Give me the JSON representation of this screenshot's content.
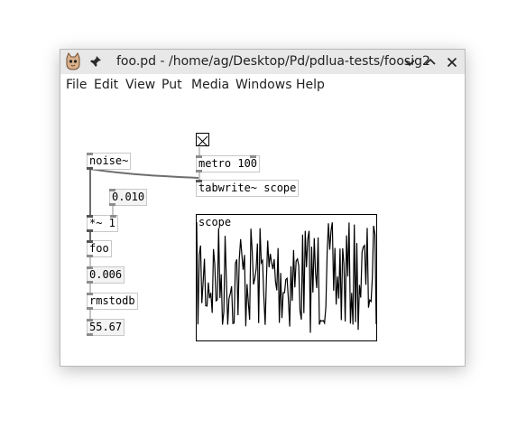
{
  "window": {
    "title": "foo.pd - /home/ag/Desktop/Pd/pdlua-tests/foosig2",
    "icons": {
      "app": "pd-cat-icon",
      "pin": "pin-icon",
      "menu": "chevron-down-icon",
      "maximize": "chevron-up-icon",
      "close": "close-icon"
    }
  },
  "menubar": [
    "File",
    "Edit",
    "View",
    "Put",
    "Media",
    "Windows",
    "Help"
  ],
  "patch": {
    "noise": "noise~",
    "mul_value": "0.010",
    "mul": "*~ 1",
    "foo": "foo",
    "foo_out": "0.006",
    "rmstodb": "rmstodb",
    "db_out": "55.67",
    "metro": "metro 100",
    "tabwrite": "tabwrite~ scope",
    "array_label": "scope",
    "toggle_checked": true
  },
  "colors": {
    "wire": "#8c8c8c",
    "signal_wire": "#6e6e6e",
    "plot": "#000000"
  }
}
